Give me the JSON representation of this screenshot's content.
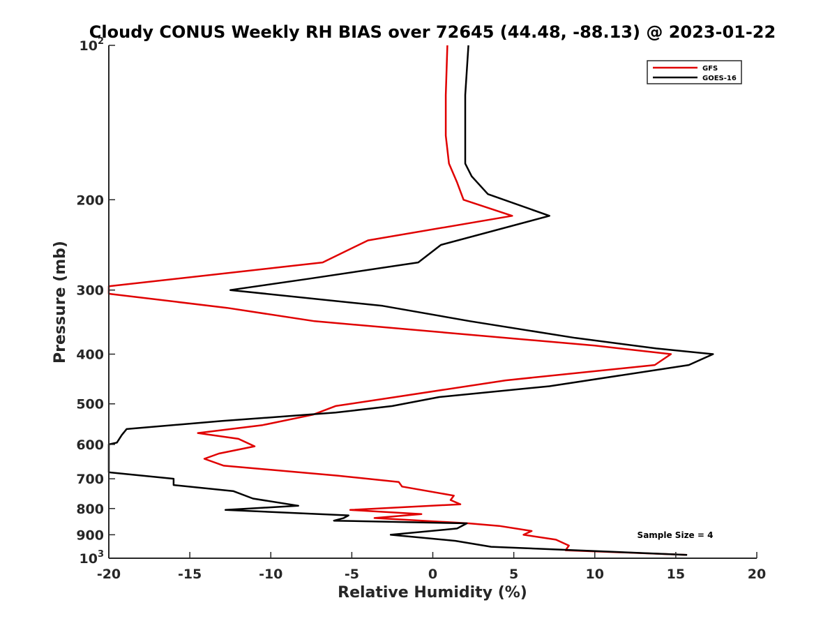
{
  "chart_data": {
    "type": "line",
    "title": "Cloudy CONUS Weekly RH BIAS over 72645 (44.48, -88.13) @ 2023-01-22",
    "xlabel": "Relative Humidity (%)",
    "ylabel": "Pressure (mb)",
    "xlim": [
      -20,
      20
    ],
    "ylim": [
      100,
      1000
    ],
    "y_scale": "log",
    "y_reversed": true,
    "grid": false,
    "legend_position": "top-right",
    "x_ticks": [
      "-20",
      "-15",
      "-10",
      "-5",
      "0",
      "5",
      "10",
      "15",
      "20"
    ],
    "y_ticks": [
      {
        "value": 100,
        "base": "10",
        "exp": "2"
      },
      {
        "value": 200,
        "label": "200"
      },
      {
        "value": 300,
        "label": "300"
      },
      {
        "value": 400,
        "label": "400"
      },
      {
        "value": 500,
        "label": "500"
      },
      {
        "value": 600,
        "label": "600"
      },
      {
        "value": 700,
        "label": "700"
      },
      {
        "value": 800,
        "label": "800"
      },
      {
        "value": 900,
        "label": "900"
      },
      {
        "value": 1000,
        "base": "10",
        "exp": "3"
      }
    ],
    "annotation": "Sample Size = 4",
    "series": [
      {
        "name": "GFS",
        "color": "#e00000",
        "points": [
          [
            0.9,
            100
          ],
          [
            0.8,
            125
          ],
          [
            0.8,
            150
          ],
          [
            1.0,
            170
          ],
          [
            1.5,
            185
          ],
          [
            1.9,
            200
          ],
          [
            4.9,
            215
          ],
          [
            -4.0,
            240
          ],
          [
            -6.8,
            265
          ],
          [
            -20.0,
            295
          ],
          [
            -20.0,
            305
          ],
          [
            -12.7,
            325
          ],
          [
            -7.3,
            345
          ],
          [
            10.0,
            385
          ],
          [
            14.7,
            400
          ],
          [
            13.7,
            420
          ],
          [
            4.5,
            450
          ],
          [
            -2.3,
            485
          ],
          [
            -6.0,
            505
          ],
          [
            -7.4,
            525
          ],
          [
            -10.5,
            550
          ],
          [
            -14.5,
            570
          ],
          [
            -12.0,
            585
          ],
          [
            -11.0,
            605
          ],
          [
            -13.2,
            625
          ],
          [
            -14.1,
            640
          ],
          [
            -12.9,
            660
          ],
          [
            -5.9,
            690
          ],
          [
            -2.1,
            710
          ],
          [
            -1.9,
            725
          ],
          [
            1.3,
            755
          ],
          [
            1.1,
            770
          ],
          [
            1.7,
            785
          ],
          [
            -5.1,
            805
          ],
          [
            -0.7,
            820
          ],
          [
            -3.6,
            835
          ],
          [
            2.2,
            855
          ],
          [
            4.1,
            865
          ],
          [
            6.1,
            885
          ],
          [
            5.6,
            900
          ],
          [
            7.6,
            920
          ],
          [
            8.4,
            945
          ],
          [
            8.2,
            965
          ],
          [
            15.7,
            985
          ]
        ]
      },
      {
        "name": "GOES-16",
        "color": "#000000",
        "points": [
          [
            2.2,
            100
          ],
          [
            2.0,
            125
          ],
          [
            2.0,
            150
          ],
          [
            2.0,
            170
          ],
          [
            2.4,
            180
          ],
          [
            3.4,
            195
          ],
          [
            7.2,
            215
          ],
          [
            0.5,
            245
          ],
          [
            -0.9,
            265
          ],
          [
            -7.6,
            285
          ],
          [
            -12.5,
            300
          ],
          [
            -3.1,
            322
          ],
          [
            2.3,
            345
          ],
          [
            8.8,
            372
          ],
          [
            13.8,
            390
          ],
          [
            17.3,
            400
          ],
          [
            15.8,
            420
          ],
          [
            7.2,
            462
          ],
          [
            0.4,
            485
          ],
          [
            -2.5,
            505
          ],
          [
            -6.0,
            520
          ],
          [
            -13.0,
            540
          ],
          [
            -18.9,
            560
          ],
          [
            -19.2,
            575
          ],
          [
            -19.5,
            595
          ],
          [
            -20.0,
            600
          ],
          [
            -20.0,
            680
          ],
          [
            -16.0,
            700
          ],
          [
            -16.0,
            720
          ],
          [
            -12.3,
            740
          ],
          [
            -11.1,
            765
          ],
          [
            -8.3,
            790
          ],
          [
            -12.8,
            805
          ],
          [
            -5.2,
            825
          ],
          [
            -5.5,
            835
          ],
          [
            -6.1,
            845
          ],
          [
            2.1,
            855
          ],
          [
            1.5,
            875
          ],
          [
            -2.6,
            900
          ],
          [
            1.4,
            925
          ],
          [
            3.6,
            950
          ],
          [
            15.7,
            985
          ]
        ]
      }
    ]
  }
}
